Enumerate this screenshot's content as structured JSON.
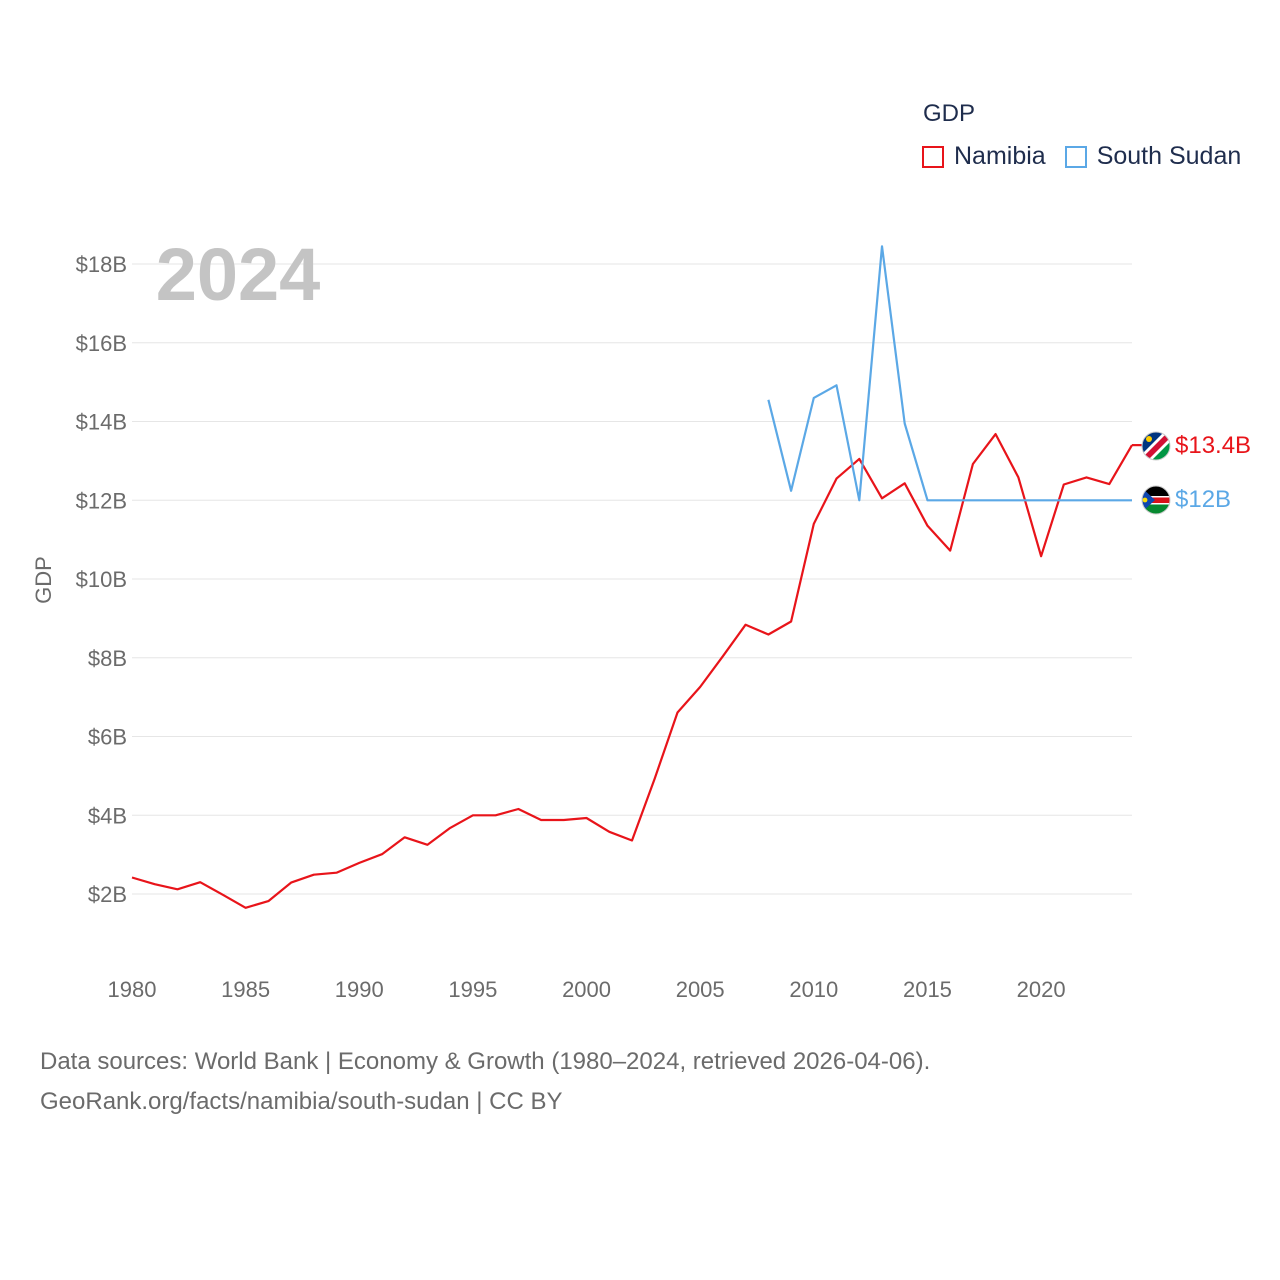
{
  "chart_data": {
    "type": "line",
    "year_label": "2024",
    "ylabel": "GDP",
    "xlabel": "",
    "xlim": [
      1980,
      2024
    ],
    "ylim": [
      0,
      19
    ],
    "y_ticks": [
      2,
      4,
      6,
      8,
      10,
      12,
      14,
      16,
      18
    ],
    "y_tick_labels": [
      "$2B",
      "$4B",
      "$6B",
      "$8B",
      "$10B",
      "$12B",
      "$14B",
      "$16B",
      "$18B"
    ],
    "x_ticks": [
      1980,
      1985,
      1990,
      1995,
      2000,
      2005,
      2010,
      2015,
      2020
    ],
    "x_tick_labels": [
      "1980",
      "1985",
      "1990",
      "1995",
      "2000",
      "2005",
      "2010",
      "2015",
      "2020"
    ],
    "legend_title": "GDP",
    "grid": true,
    "series": [
      {
        "name": "Namibia",
        "color": "#e8141a",
        "end_label": "$13.4B",
        "flag": "namibia-flag-icon",
        "x": [
          1980,
          1981,
          1982,
          1983,
          1984,
          1985,
          1986,
          1987,
          1988,
          1989,
          1990,
          1991,
          1992,
          1993,
          1994,
          1995,
          1996,
          1997,
          1998,
          1999,
          2000,
          2001,
          2002,
          2003,
          2004,
          2005,
          2006,
          2007,
          2008,
          2009,
          2010,
          2011,
          2012,
          2013,
          2014,
          2015,
          2016,
          2017,
          2018,
          2019,
          2020,
          2021,
          2022,
          2023,
          2024
        ],
        "values": [
          2.42,
          2.25,
          2.12,
          2.3,
          1.98,
          1.65,
          1.82,
          2.29,
          2.49,
          2.54,
          2.79,
          3.01,
          3.44,
          3.25,
          3.68,
          4.0,
          4.0,
          4.16,
          3.88,
          3.88,
          3.93,
          3.58,
          3.36,
          4.93,
          6.61,
          7.26,
          8.04,
          8.84,
          8.59,
          8.92,
          11.4,
          12.55,
          13.05,
          12.05,
          12.43,
          11.35,
          10.72,
          12.92,
          13.68,
          12.58,
          10.58,
          12.4,
          12.58,
          12.41,
          13.4
        ]
      },
      {
        "name": "South Sudan",
        "color": "#5ba8e6",
        "end_label": "$12B",
        "flag": "south-sudan-flag-icon",
        "x": [
          2008,
          2009,
          2010,
          2011,
          2012,
          2013,
          2014,
          2015,
          2016,
          2017,
          2018,
          2019,
          2020,
          2021,
          2022,
          2023,
          2024
        ],
        "values": [
          14.55,
          12.24,
          14.6,
          14.92,
          12.0,
          18.45,
          13.95,
          12.0,
          12.0,
          12.0,
          12.0,
          12.0,
          12.0,
          12.0,
          12.0,
          12.0,
          12.0
        ]
      }
    ]
  },
  "footer": {
    "line1": "Data sources: World Bank | Economy & Growth (1980–2024, retrieved 2026-04-06).",
    "line2": "GeoRank.org/facts/namibia/south-sudan | CC BY"
  }
}
